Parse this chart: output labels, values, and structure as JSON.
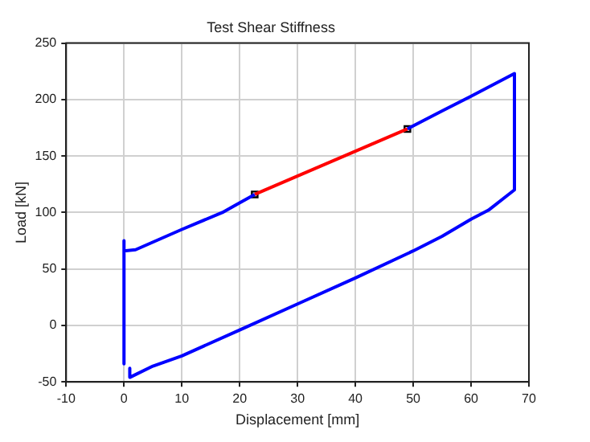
{
  "chart_data": {
    "type": "line",
    "title": "Test Shear Stiffness",
    "xlabel": "Displacement [mm]",
    "ylabel": "Load [kN]",
    "xlim": [
      -10,
      70
    ],
    "xticks": [
      -10,
      0,
      10,
      20,
      30,
      40,
      50,
      60,
      70
    ],
    "ylim": [
      -50,
      250
    ],
    "yticks": [
      -50,
      0,
      50,
      100,
      150,
      200,
      250
    ],
    "grid": true,
    "legend": false,
    "series": [
      {
        "color": "#0000ff",
        "x": [
          0,
          0,
          null,
          1,
          1,
          5,
          10,
          20,
          30,
          40,
          50,
          55,
          60,
          63,
          67.5,
          67.5,
          60,
          55,
          49,
          null,
          22.6,
          17,
          10,
          2,
          0
        ],
        "values": [
          75,
          -34,
          null,
          -38,
          -46,
          -36,
          -27,
          -4,
          19,
          42,
          66,
          79,
          94,
          102,
          120,
          223,
          203,
          190,
          174,
          null,
          116,
          100,
          85,
          67,
          66
        ]
      },
      {
        "color": "#ff0000",
        "x": [
          22.6,
          49
        ],
        "values": [
          116,
          174
        ]
      },
      {
        "type": "scatter",
        "marker": "square",
        "color": "#000000",
        "x": [
          22.6,
          49
        ],
        "values": [
          116,
          174
        ]
      }
    ]
  }
}
